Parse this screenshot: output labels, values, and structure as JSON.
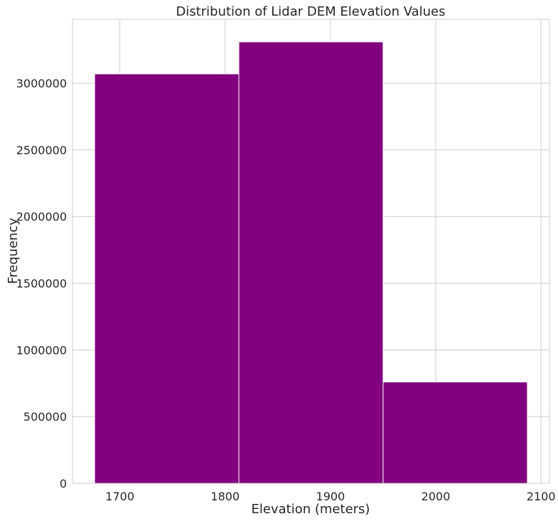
{
  "chart_data": {
    "type": "bar",
    "title": "Distribution of Lidar DEM Elevation Values",
    "xlabel": "Elevation (meters)",
    "ylabel": "Frequency",
    "bins": [
      {
        "start": 1676,
        "end": 1813,
        "value": 3070000
      },
      {
        "start": 1813,
        "end": 1950,
        "value": 3310000
      },
      {
        "start": 1950,
        "end": 2087,
        "value": 760000
      }
    ],
    "xlim": [
      1655,
      2108
    ],
    "ylim": [
      0,
      3480000
    ],
    "x_ticks": [
      1700,
      1800,
      1900,
      2000,
      2100
    ],
    "x_tick_labels": [
      "1700",
      "1800",
      "1900",
      "2000",
      "2100"
    ],
    "y_ticks": [
      0,
      500000,
      1000000,
      1500000,
      2000000,
      2500000,
      3000000
    ],
    "y_tick_labels": [
      "0",
      "500000",
      "1000000",
      "1500000",
      "2000000",
      "2500000",
      "3000000"
    ],
    "bar_color": "#800080",
    "grid": true,
    "legend": "none"
  }
}
